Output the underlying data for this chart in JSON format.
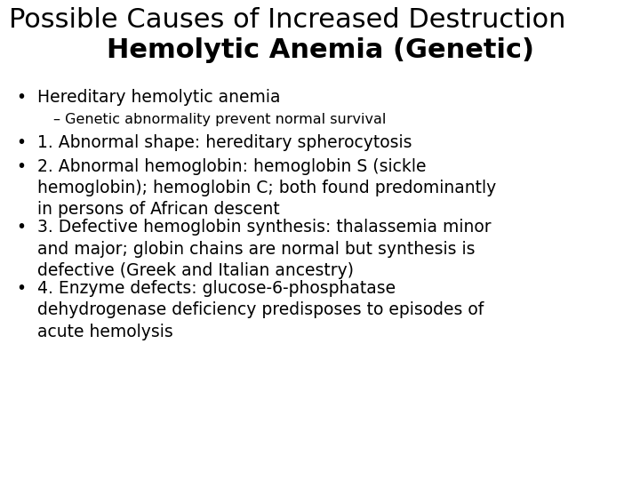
{
  "title_line1": "Possible Causes of Increased Destruction",
  "title_line2": "Hemolytic Anemia (Genetic)",
  "background_color": "#ffffff",
  "text_color": "#000000",
  "title1_fontsize": 22,
  "title2_fontsize": 22,
  "body_fontsize": 13.5,
  "sub_fontsize": 11.5,
  "bullet": "•",
  "items": [
    {
      "type": "bullet",
      "text": "Hereditary hemolytic anemia",
      "lines": 1
    },
    {
      "type": "sub",
      "text": "– Genetic abnormality prevent normal survival",
      "lines": 1
    },
    {
      "type": "bullet",
      "text": "1. Abnormal shape: hereditary spherocytosis",
      "lines": 1
    },
    {
      "type": "bullet",
      "text": "2. Abnormal hemoglobin: hemoglobin S (sickle\nhemoglobin); hemoglobin C; both found predominantly\nin persons of African descent",
      "lines": 3
    },
    {
      "type": "bullet",
      "text": "3. Defective hemoglobin synthesis: thalassemia minor\nand major; globin chains are normal but synthesis is\ndefective (Greek and Italian ancestry)",
      "lines": 3
    },
    {
      "type": "bullet",
      "text": "4. Enzyme defects: glucose-6-phosphatase\ndehydrogenase deficiency predisposes to episodes of\nacute hemolysis",
      "lines": 3
    }
  ]
}
